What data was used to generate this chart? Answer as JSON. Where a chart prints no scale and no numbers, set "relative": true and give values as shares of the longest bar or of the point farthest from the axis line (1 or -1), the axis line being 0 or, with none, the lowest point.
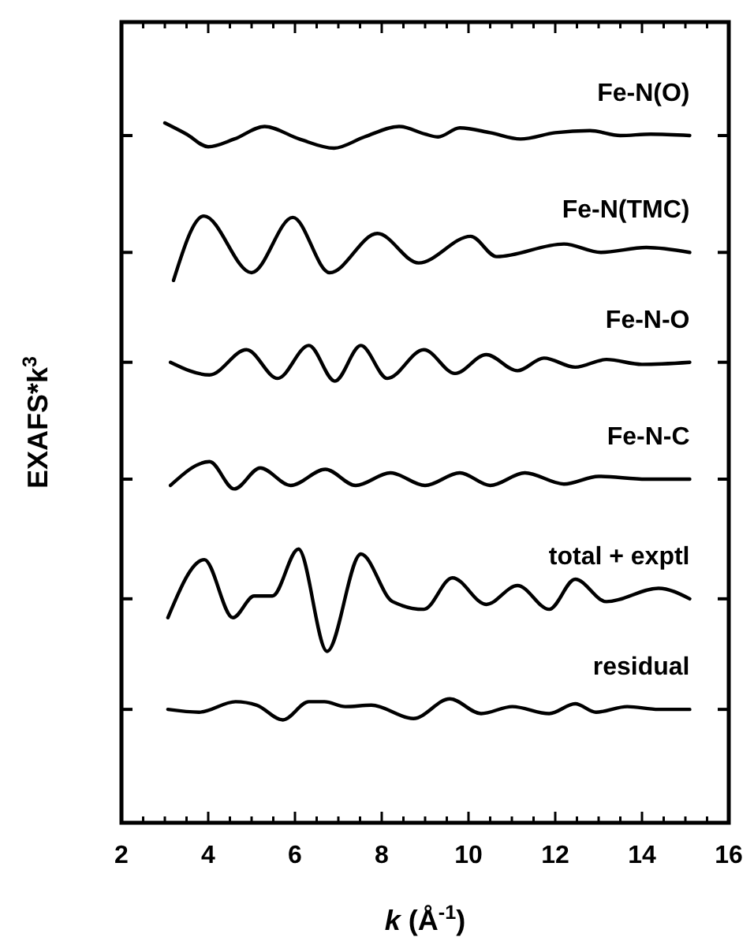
{
  "chart_data": {
    "type": "line",
    "relative": true,
    "xlabel": "k (Å$^{-1}$)",
    "ylabel": "EXAFS*k$^{3}$",
    "xlim": [
      2,
      16
    ],
    "xticks": [
      2,
      {
        "value": 2.5,
        "label": null
      },
      {
        "value": 3,
        "label": null
      },
      {
        "value": 3.5,
        "label": null
      },
      4,
      {
        "value": 4.5,
        "label": null
      },
      {
        "value": 5,
        "label": null
      },
      {
        "value": 5.5,
        "label": null
      },
      6,
      {
        "value": 6.5,
        "label": null
      },
      {
        "value": 7,
        "label": null
      },
      {
        "value": 7.5,
        "label": null
      },
      8,
      {
        "value": 8.5,
        "label": null
      },
      {
        "value": 9,
        "label": null
      },
      {
        "value": 9.5,
        "label": null
      },
      10,
      {
        "value": 10.5,
        "label": null
      },
      {
        "value": 11,
        "label": null
      },
      {
        "value": 11.5,
        "label": null
      },
      12,
      {
        "value": 12.5,
        "label": null
      },
      {
        "value": 13,
        "label": null
      },
      {
        "value": 13.5,
        "label": null
      },
      14,
      {
        "value": 14.5,
        "label": null
      },
      {
        "value": 15,
        "label": null
      },
      {
        "value": 15.5,
        "label": null
      },
      16
    ],
    "grid": false,
    "legend": false,
    "marker": "none",
    "line_style": "solid",
    "series": [
      {
        "name": "Fe-N(O)",
        "color": "#000000",
        "x": [
          3.0,
          3.5,
          4.0,
          4.6,
          5.3,
          6.1,
          6.9,
          7.6,
          8.4,
          9.0,
          9.3,
          9.8,
          10.5,
          11.2,
          12.0,
          12.8,
          13.5,
          14.2,
          15.1
        ],
        "values": [
          1.0,
          0.984,
          0.966,
          0.977,
          0.995,
          0.977,
          0.964,
          0.98,
          0.995,
          0.984,
          0.98,
          0.993,
          0.986,
          0.977,
          0.986,
          0.989,
          0.982,
          0.984,
          0.982
        ]
      },
      {
        "name": "Fe-N(TMC)",
        "color": "#000000",
        "x": [
          3.2,
          3.9,
          5.0,
          5.95,
          6.8,
          7.9,
          8.85,
          10.05,
          10.65,
          12.2,
          13.05,
          14.1,
          15.1
        ],
        "values": [
          0.775,
          0.867,
          0.786,
          0.865,
          0.786,
          0.842,
          0.8,
          0.838,
          0.809,
          0.827,
          0.815,
          0.822,
          0.815
        ]
      },
      {
        "name": "Fe-N-O",
        "color": "#000000",
        "x": [
          3.13,
          4.03,
          4.88,
          5.6,
          6.32,
          6.92,
          7.52,
          8.13,
          8.97,
          9.69,
          10.41,
          11.13,
          11.74,
          12.46,
          13.18,
          14.0,
          15.1
        ],
        "values": [
          0.658,
          0.64,
          0.676,
          0.635,
          0.682,
          0.631,
          0.682,
          0.635,
          0.676,
          0.642,
          0.669,
          0.646,
          0.664,
          0.651,
          0.662,
          0.655,
          0.658
        ]
      },
      {
        "name": "Fe-N-C",
        "color": "#000000",
        "x": [
          3.13,
          4.03,
          4.6,
          5.2,
          5.9,
          6.7,
          7.4,
          8.2,
          9.0,
          9.8,
          10.5,
          11.3,
          12.2,
          13.0,
          14.1,
          15.1
        ],
        "values": [
          0.482,
          0.516,
          0.477,
          0.507,
          0.482,
          0.505,
          0.482,
          0.5,
          0.482,
          0.5,
          0.482,
          0.5,
          0.484,
          0.495,
          0.491,
          0.491
        ]
      },
      {
        "name": "total + exptl",
        "color": "#000000",
        "x": [
          3.07,
          3.91,
          4.57,
          5.06,
          5.48,
          6.08,
          6.74,
          7.52,
          8.25,
          8.97,
          9.63,
          10.41,
          11.13,
          11.86,
          12.46,
          13.18,
          14.38,
          15.1
        ],
        "values": [
          0.293,
          0.376,
          0.293,
          0.324,
          0.324,
          0.391,
          0.245,
          0.384,
          0.316,
          0.305,
          0.35,
          0.312,
          0.339,
          0.305,
          0.348,
          0.316,
          0.335,
          0.32
        ]
      },
      {
        "name": "residual",
        "color": "#000000",
        "x": [
          3.07,
          3.79,
          4.63,
          5.12,
          5.72,
          6.32,
          6.68,
          7.16,
          7.76,
          8.73,
          9.57,
          10.29,
          11.01,
          11.86,
          12.46,
          12.94,
          13.66,
          14.38,
          15.1
        ],
        "values": [
          0.162,
          0.158,
          0.173,
          0.168,
          0.147,
          0.173,
          0.173,
          0.166,
          0.168,
          0.149,
          0.177,
          0.156,
          0.166,
          0.156,
          0.17,
          0.158,
          0.166,
          0.162,
          0.162
        ]
      }
    ]
  }
}
